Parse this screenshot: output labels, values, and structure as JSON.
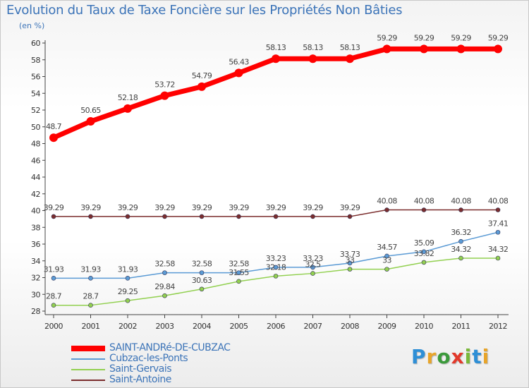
{
  "chart_data": {
    "type": "line",
    "title": "Evolution du Taux de Taxe Foncière sur les Propriétés Non Bâties",
    "unit_label": "(en %)",
    "xlabel": "",
    "ylabel": "",
    "ylim": [
      28,
      60
    ],
    "ytick_step": 2,
    "grid": false,
    "legend_position": "bottom-left",
    "categories": [
      "2000",
      "2001",
      "2002",
      "2003",
      "2004",
      "2005",
      "2006",
      "2007",
      "2008",
      "2009",
      "2010",
      "2011",
      "2012"
    ],
    "y_ticks": [
      "28",
      "30",
      "32",
      "34",
      "36",
      "38",
      "40",
      "42",
      "44",
      "46",
      "48",
      "50",
      "52",
      "54",
      "56",
      "58",
      "60"
    ],
    "series": [
      {
        "name": "SAINT-ANDRé-DE-CUBZAC",
        "color": "#ff0000",
        "values": [
          48.7,
          50.65,
          52.18,
          53.72,
          54.79,
          56.43,
          58.13,
          58.13,
          58.13,
          59.29,
          59.29,
          59.29,
          59.29
        ],
        "labels": [
          "48.7",
          "50.65",
          "52.18",
          "53.72",
          "54.79",
          "56.43",
          "58.13",
          "58.13",
          "58.13",
          "59.29",
          "59.29",
          "59.29",
          "59.29"
        ]
      },
      {
        "name": "Cubzac-les-Ponts",
        "color": "#5b9bd5",
        "values": [
          31.93,
          31.93,
          31.93,
          32.58,
          32.58,
          32.58,
          33.23,
          33.23,
          33.73,
          34.57,
          35.09,
          36.32,
          37.41
        ],
        "labels": [
          "31.93",
          "31.93",
          "31.93",
          "32.58",
          "32.58",
          "32.58",
          "33.23",
          "33.23",
          "33.73",
          "34.57",
          "35.09",
          "36.32",
          "37.41"
        ]
      },
      {
        "name": "Saint-Gervais",
        "color": "#92d050",
        "values": [
          28.7,
          28.7,
          29.25,
          29.84,
          30.63,
          31.55,
          32.18,
          32.5,
          33,
          33,
          33.82,
          34.32,
          34.32
        ],
        "labels": [
          "28.7",
          "28.7",
          "29.25",
          "29.84",
          "30.63",
          "31.55",
          "32.18",
          "32.5",
          "33",
          "33",
          "33.82",
          "34.32",
          "34.32"
        ]
      },
      {
        "name": "Saint-Antoine",
        "color": "#7b2d2d",
        "values": [
          39.29,
          39.29,
          39.29,
          39.29,
          39.29,
          39.29,
          39.29,
          39.29,
          39.29,
          40.08,
          40.08,
          40.08,
          40.08
        ],
        "labels": [
          "39.29",
          "39.29",
          "39.29",
          "39.29",
          "39.29",
          "39.29",
          "39.29",
          "39.29",
          "39.29",
          "40.08",
          "40.08",
          "40.08",
          "40.08"
        ]
      }
    ]
  },
  "logo": {
    "letters": [
      "P",
      "r",
      "o",
      "x",
      "i",
      "t",
      "i"
    ]
  }
}
